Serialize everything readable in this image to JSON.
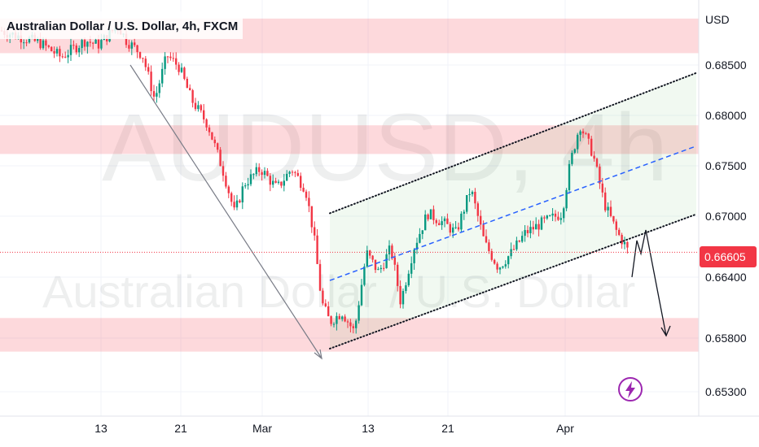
{
  "chart_data": {
    "type": "candlestick",
    "title": "Australian Dollar / U.S. Dollar, 4h, FXCM",
    "watermark_symbol": "AUDUSD, 4h",
    "watermark_name": "Australian Dollar / U.S. Dollar",
    "currency_label": "USD",
    "y_ticks": [
      "0.68500",
      "0.68000",
      "0.67500",
      "0.67000",
      "0.66400",
      "0.65800",
      "0.65300"
    ],
    "x_ticks": [
      "13",
      "21",
      "Mar",
      "13",
      "21",
      "Apr"
    ],
    "current_price": "0.66605",
    "ylim": [
      0.6515,
      0.6905
    ],
    "grid": true,
    "colors": {
      "up": "#089981",
      "down": "#f23645",
      "zone": "#f7525f",
      "channel": "#4caf50",
      "midline": "#2962ff",
      "pricetag": "#f23645"
    },
    "candles": []
  }
}
